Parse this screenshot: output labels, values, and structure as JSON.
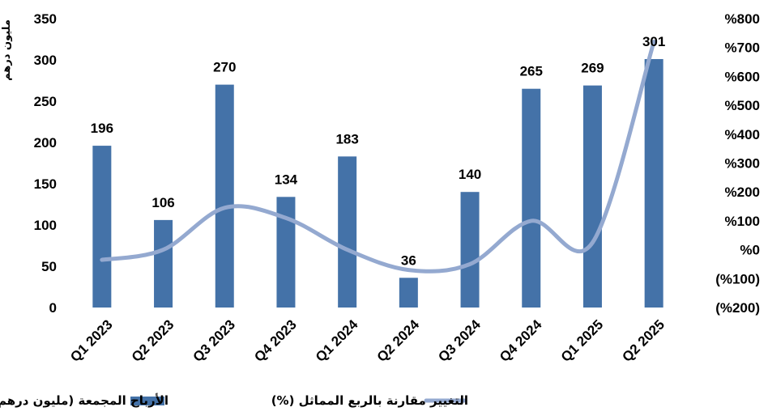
{
  "chart_data": {
    "type": "bar",
    "categories": [
      "Q1 2023",
      "Q2 2023",
      "Q3 2023",
      "Q4 2023",
      "Q1 2024",
      "Q2 2024",
      "Q3 2024",
      "Q4 2024",
      "Q1 2025",
      "Q2 2025"
    ],
    "series": [
      {
        "name": "الأرباح المجمعة (مليون درهم)",
        "type": "bar",
        "axis": "left",
        "color": "#4472a8",
        "values": [
          196,
          106,
          270,
          134,
          183,
          36,
          140,
          265,
          269,
          301
        ],
        "data_labels": [
          "196",
          "106",
          "270",
          "134",
          "183",
          "36",
          "140",
          "265",
          "269",
          "301"
        ]
      },
      {
        "name": "التغيير مقارنة بالربع المماثل (%)",
        "type": "line",
        "axis": "right",
        "color": "#94a9d0",
        "smooth": true,
        "values": [
          -35,
          0,
          145,
          110,
          0,
          -70,
          -50,
          100,
          25,
          720
        ]
      }
    ],
    "y_left": {
      "label": "مليون درهم",
      "ylim": [
        0,
        350
      ],
      "ticks": [
        0,
        50,
        100,
        150,
        200,
        250,
        300,
        350
      ],
      "tick_labels": [
        "0",
        "50",
        "100",
        "150",
        "200",
        "250",
        "300",
        "350"
      ]
    },
    "y_right": {
      "ylim": [
        -200,
        800
      ],
      "ticks": [
        800,
        700,
        600,
        500,
        400,
        300,
        200,
        100,
        0,
        -100,
        -200
      ],
      "tick_labels": [
        "%800",
        "%700",
        "%600",
        "%500",
        "%400",
        "%300",
        "%200",
        "%100",
        "%0",
        "(%100)",
        "(%200)"
      ],
      "negative_color": "#ff0000"
    },
    "legend": "bottom",
    "grid": false,
    "x_label_rotation": -45
  }
}
